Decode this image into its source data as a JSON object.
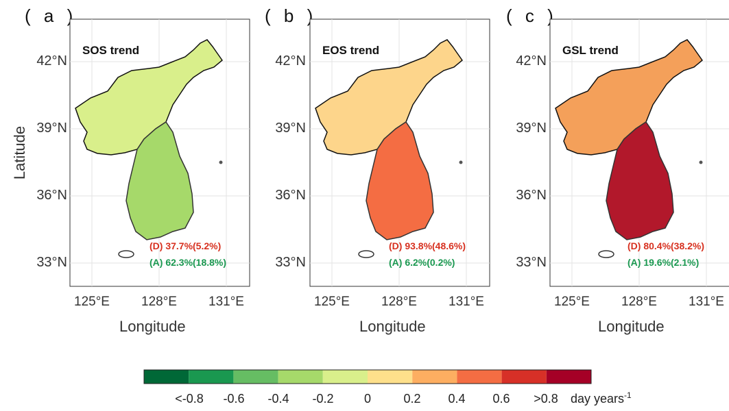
{
  "panels": [
    {
      "letter": "( a )",
      "trend_title": "SOS trend",
      "decrease": "(D) 37.7%(5.2%)",
      "increase": "(A) 62.3%(18.8%)",
      "theme": "green"
    },
    {
      "letter": "( b )",
      "trend_title": "EOS trend",
      "decrease": "(D) 93.8%(48.6%)",
      "increase": "(A) 6.2%(0.2%)",
      "theme": "orange"
    },
    {
      "letter": "( c )",
      "trend_title": "GSL trend",
      "decrease": "(D) 80.4%(38.2%)",
      "increase": "(A) 19.6%(2.1%)",
      "theme": "red"
    }
  ],
  "axes": {
    "y_ticks": [
      "42°N",
      "39°N",
      "36°N",
      "33°N"
    ],
    "x_ticks": [
      "125°E",
      "128°E",
      "131°E"
    ],
    "y_title": "Latitude",
    "x_title": "Longitude"
  },
  "colorbar": {
    "colors": [
      "#006837",
      "#1a9850",
      "#66bd63",
      "#a6d96a",
      "#d9ef8b",
      "#fee08b",
      "#fdae61",
      "#f46d43",
      "#d73027",
      "#a50026"
    ],
    "tick_labels": [
      "<-0.8",
      "-0.6",
      "-0.4",
      "-0.2",
      "0",
      "0.2",
      "0.4",
      "0.6",
      ">0.8"
    ],
    "unit": "day years",
    "unit_sup": "-1"
  }
}
